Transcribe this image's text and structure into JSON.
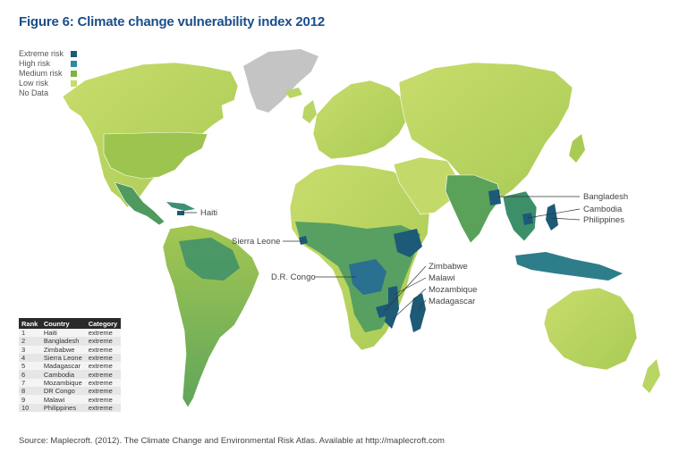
{
  "title": "Figure 6: Climate change vulnerability index 2012",
  "legend": {
    "items": [
      {
        "label": "Extreme risk",
        "color": "#1d5a78"
      },
      {
        "label": "High risk",
        "color": "#2e8aa0"
      },
      {
        "label": "Medium risk",
        "color": "#7cb342"
      },
      {
        "label": "Low risk",
        "color": "#c9dc6a"
      },
      {
        "label": "No Data",
        "color": "#c4c4c4"
      }
    ]
  },
  "callouts": {
    "haiti": "Haiti",
    "sierra_leone": "Sierra Leone",
    "dr_congo": "D.R. Congo",
    "bangladesh": "Bangladesh",
    "cambodia": "Cambodia",
    "philippines": "Philippines",
    "zimbabwe": "Zimbabwe",
    "malawi": "Malawi",
    "mozambique": "Mozambique",
    "madagascar": "Madagascar"
  },
  "ranking_table": {
    "headers": [
      "Rank",
      "Country",
      "Category"
    ],
    "rows": [
      [
        "1",
        "Haiti",
        "extreme"
      ],
      [
        "2",
        "Bangladesh",
        "extreme"
      ],
      [
        "3",
        "Zimbabwe",
        "extreme"
      ],
      [
        "4",
        "Sierra Leone",
        "extreme"
      ],
      [
        "5",
        "Madagascar",
        "extreme"
      ],
      [
        "6",
        "Cambodia",
        "extreme"
      ],
      [
        "7",
        "Mozambique",
        "extreme"
      ],
      [
        "8",
        "DR Congo",
        "extreme"
      ],
      [
        "9",
        "Malawi",
        "extreme"
      ],
      [
        "10",
        "Philippines",
        "extreme"
      ]
    ]
  },
  "source": "Source: Maplecroft. (2012). The Climate Change and Environmental Risk Atlas. Available at http://maplecroft.com"
}
